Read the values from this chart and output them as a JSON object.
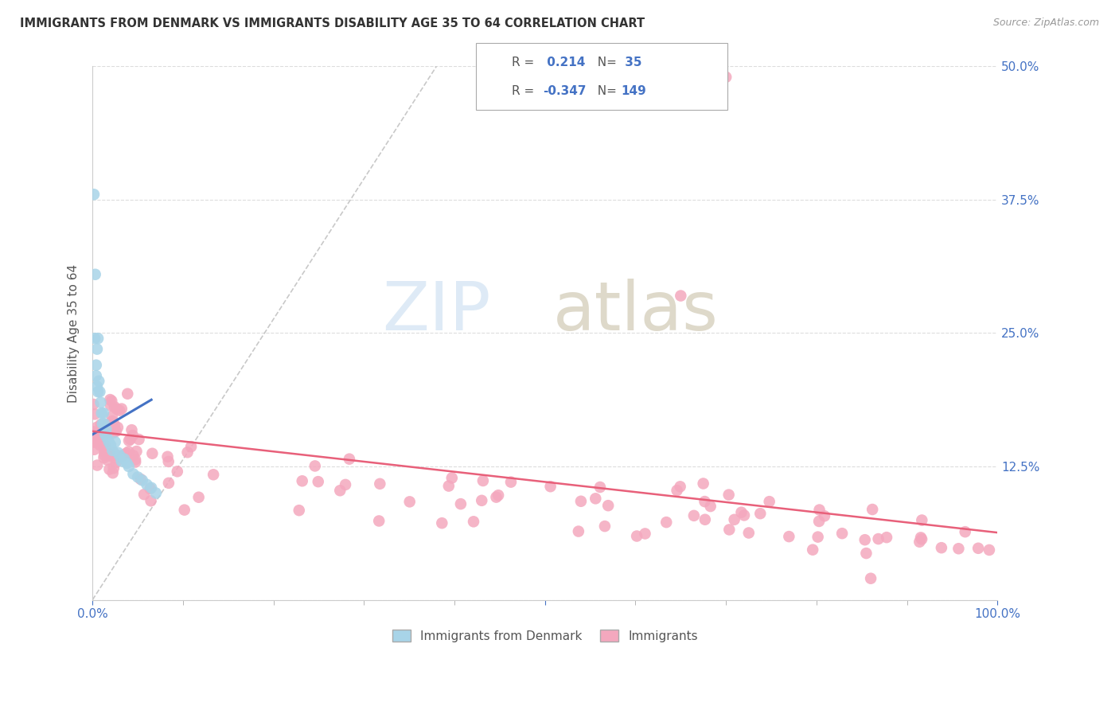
{
  "title": "IMMIGRANTS FROM DENMARK VS IMMIGRANTS DISABILITY AGE 35 TO 64 CORRELATION CHART",
  "source": "Source: ZipAtlas.com",
  "ylabel": "Disability Age 35 to 64",
  "xlim": [
    0.0,
    1.0
  ],
  "ylim": [
    0.0,
    0.5
  ],
  "yticks": [
    0.0,
    0.125,
    0.25,
    0.375,
    0.5
  ],
  "ytick_labels": [
    "",
    "12.5%",
    "25.0%",
    "37.5%",
    "50.0%"
  ],
  "blue_color": "#a8d4e8",
  "pink_color": "#f4a8be",
  "trend_blue_color": "#4472c4",
  "trend_pink_color": "#e8607a",
  "legend_blue_label": "Immigrants from Denmark",
  "legend_pink_label": "Immigrants",
  "R_blue": 0.214,
  "N_blue": 35,
  "R_pink": -0.347,
  "N_pink": 149,
  "watermark_zip_color": "#c8ddf0",
  "watermark_atlas_color": "#c8c0a8"
}
